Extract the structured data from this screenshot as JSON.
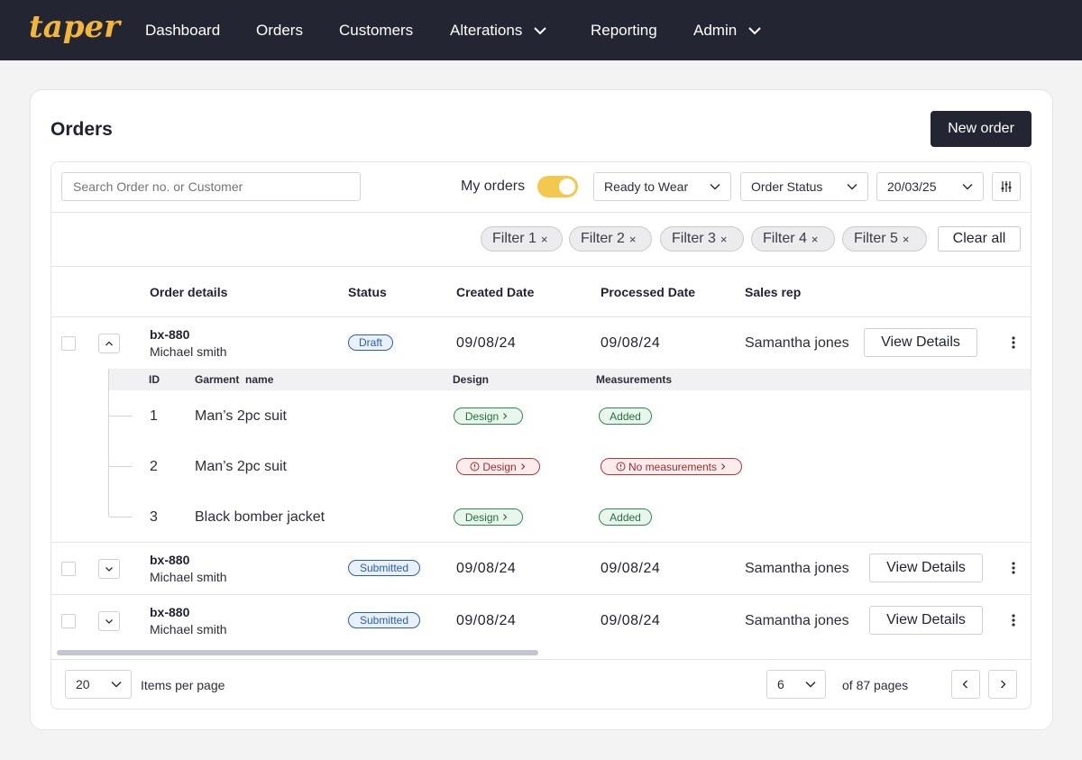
{
  "nav": {
    "logo": "taper",
    "items": [
      {
        "label": "Dashboard"
      },
      {
        "label": "Orders"
      },
      {
        "label": "Customers"
      },
      {
        "label": "Alterations"
      },
      {
        "label": "Reporting"
      },
      {
        "label": "Admin"
      }
    ]
  },
  "page": {
    "title": "Orders",
    "new_order_label": "New order"
  },
  "toolbar": {
    "search_placeholder": "Search Order no. or Customer",
    "my_orders_label": "My orders",
    "my_orders_on": true,
    "dropdowns": [
      "Ready to Wear",
      "Order Status",
      "20/03/25"
    ]
  },
  "filters": {
    "chips": [
      "Filter 1",
      "Filter 2",
      "Filter 3",
      "Filter 4",
      "Filter 5"
    ],
    "remove_glyph": "×",
    "clear_all_label": "Clear all"
  },
  "table": {
    "headers": [
      "Order details",
      "Status",
      "Created Date",
      "Processed Date",
      "Sales rep"
    ],
    "view_details_label": "View Details",
    "rows": [
      {
        "order_id": "bx-880",
        "customer": "Michael smith",
        "status": "Draft",
        "created": "09/08/24",
        "processed": "09/08/24",
        "sales_rep": "Samantha jones",
        "expanded": true
      },
      {
        "order_id": "bx-880",
        "customer": "Michael smith",
        "status": "Submitted",
        "created": "09/08/24",
        "processed": "09/08/24",
        "sales_rep": "Samantha jones",
        "expanded": false
      },
      {
        "order_id": "bx-880",
        "customer": "Michael smith",
        "status": "Submitted",
        "created": "09/08/24",
        "processed": "09/08/24",
        "sales_rep": "Samantha jones",
        "expanded": false
      }
    ],
    "garments": {
      "headers": [
        "ID",
        "Garment  name",
        "Design",
        "Measurements"
      ],
      "items": [
        {
          "id": "1",
          "name": "Man’s 2pc suit",
          "design": "Design",
          "design_ok": true,
          "measurements": "Added",
          "measurements_ok": true
        },
        {
          "id": "2",
          "name": "Man’s 2pc suit",
          "design": "Design",
          "design_ok": false,
          "measurements": "No measurements",
          "measurements_ok": false
        },
        {
          "id": "3",
          "name": "Black bomber jacket",
          "design": "Design",
          "design_ok": true,
          "measurements": "Added",
          "measurements_ok": true
        }
      ]
    }
  },
  "pagination": {
    "per_page": "20",
    "per_page_label": "Items per page",
    "current_page": "6",
    "of_pages": "of 87 pages"
  },
  "colors": {
    "topbar": "#232632",
    "brand": "#f2b73a",
    "toggle_on": "#f2c94c",
    "status_badge": "#2d5fa3",
    "ok_green": "#26703c",
    "error_red": "#9a2e2e"
  }
}
